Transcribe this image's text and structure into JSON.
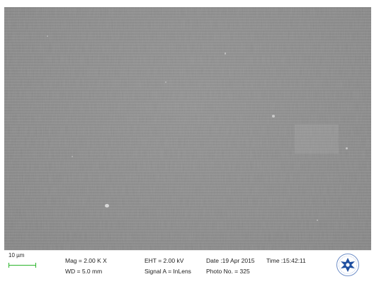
{
  "image": {
    "specimen": "sem-micrograph"
  },
  "info_bar": {
    "scale_label": "10 µm",
    "mag": "Mag =  2.00 K X",
    "wd": "WD =  5.0 mm",
    "eht": "EHT =  2.00 kV",
    "signal": "Signal A = InLens",
    "date": "Date :19 Apr 2015",
    "photo": "Photo No. = 325",
    "time": "Time :15:42:11"
  },
  "colors": {
    "scale_bar": "#2bb52b",
    "logo_blue": "#1f4fa0"
  }
}
